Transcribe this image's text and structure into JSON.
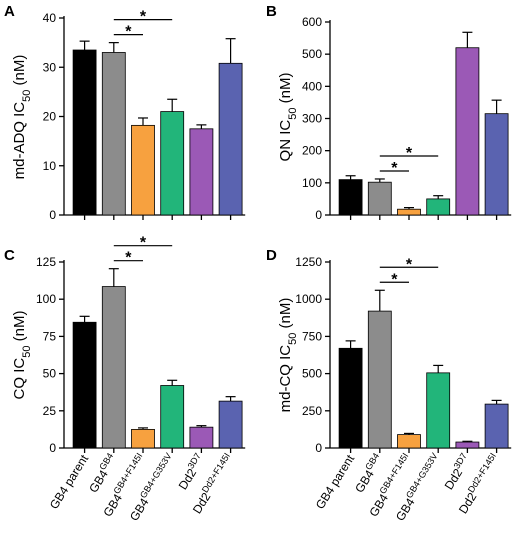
{
  "colors": [
    "#000000",
    "#8c8c8c",
    "#f7a13f",
    "#22b57a",
    "#9b59b6",
    "#5a63b0"
  ],
  "categories": [
    {
      "base": "GB4 parent",
      "sup": ""
    },
    {
      "base": "GB4",
      "sup": "GB4"
    },
    {
      "base": "GB4",
      "sup": "GB4+F145I"
    },
    {
      "base": "GB4",
      "sup": "GB4+G353V"
    },
    {
      "base": "Dd2",
      "sup": "3D7"
    },
    {
      "base": "Dd2",
      "sup": "Dd2+F145I"
    }
  ],
  "chart_data": [
    {
      "panel": "A",
      "type": "bar",
      "ylabel": {
        "main": "md-ADQ IC",
        "sub": "50",
        "tail": " (nM)"
      },
      "ylim": [
        0,
        40
      ],
      "yticks": [
        0,
        10,
        20,
        30,
        40
      ],
      "values": [
        33.5,
        33.0,
        18.2,
        21.0,
        17.5,
        30.8
      ],
      "errors": [
        1.8,
        2.0,
        1.5,
        2.5,
        0.8,
        5.0
      ],
      "significance": [
        {
          "from": 1,
          "to": 2,
          "label": "*"
        },
        {
          "from": 1,
          "to": 3,
          "label": "*"
        }
      ]
    },
    {
      "panel": "B",
      "type": "bar",
      "ylabel": {
        "main": "QN IC",
        "sub": "50",
        "tail": " (nM)"
      },
      "ylim": [
        0,
        600
      ],
      "yticks": [
        0,
        100,
        200,
        300,
        400,
        500,
        600
      ],
      "values": [
        110,
        102,
        18,
        50,
        520,
        315
      ],
      "errors": [
        12,
        10,
        5,
        10,
        48,
        42
      ],
      "significance": [
        {
          "from": 1,
          "to": 2,
          "label": "*"
        },
        {
          "from": 1,
          "to": 3,
          "label": "*"
        }
      ]
    },
    {
      "panel": "C",
      "type": "bar",
      "ylabel": {
        "main": "CQ IC",
        "sub": "50",
        "tail": " (nM)"
      },
      "ylim": [
        0,
        125
      ],
      "yticks": [
        0,
        25,
        50,
        75,
        100,
        125
      ],
      "values": [
        84.5,
        108.5,
        12.5,
        42.0,
        14.0,
        31.5
      ],
      "errors": [
        4.0,
        12.0,
        1.0,
        3.5,
        1.0,
        3.0
      ],
      "significance": [
        {
          "from": 1,
          "to": 2,
          "label": "*"
        },
        {
          "from": 1,
          "to": 3,
          "label": "*"
        }
      ]
    },
    {
      "panel": "D",
      "type": "bar",
      "ylabel": {
        "main": "md-CQ IC",
        "sub": "50",
        "tail": " (nM)"
      },
      "ylim": [
        0,
        1250
      ],
      "yticks": [
        0,
        250,
        500,
        750,
        1000,
        1250
      ],
      "values": [
        670,
        920,
        90,
        505,
        40,
        295
      ],
      "errors": [
        50,
        140,
        8,
        50,
        5,
        25
      ],
      "significance": [
        {
          "from": 1,
          "to": 2,
          "label": "*"
        },
        {
          "from": 1,
          "to": 3,
          "label": "*"
        }
      ]
    }
  ]
}
